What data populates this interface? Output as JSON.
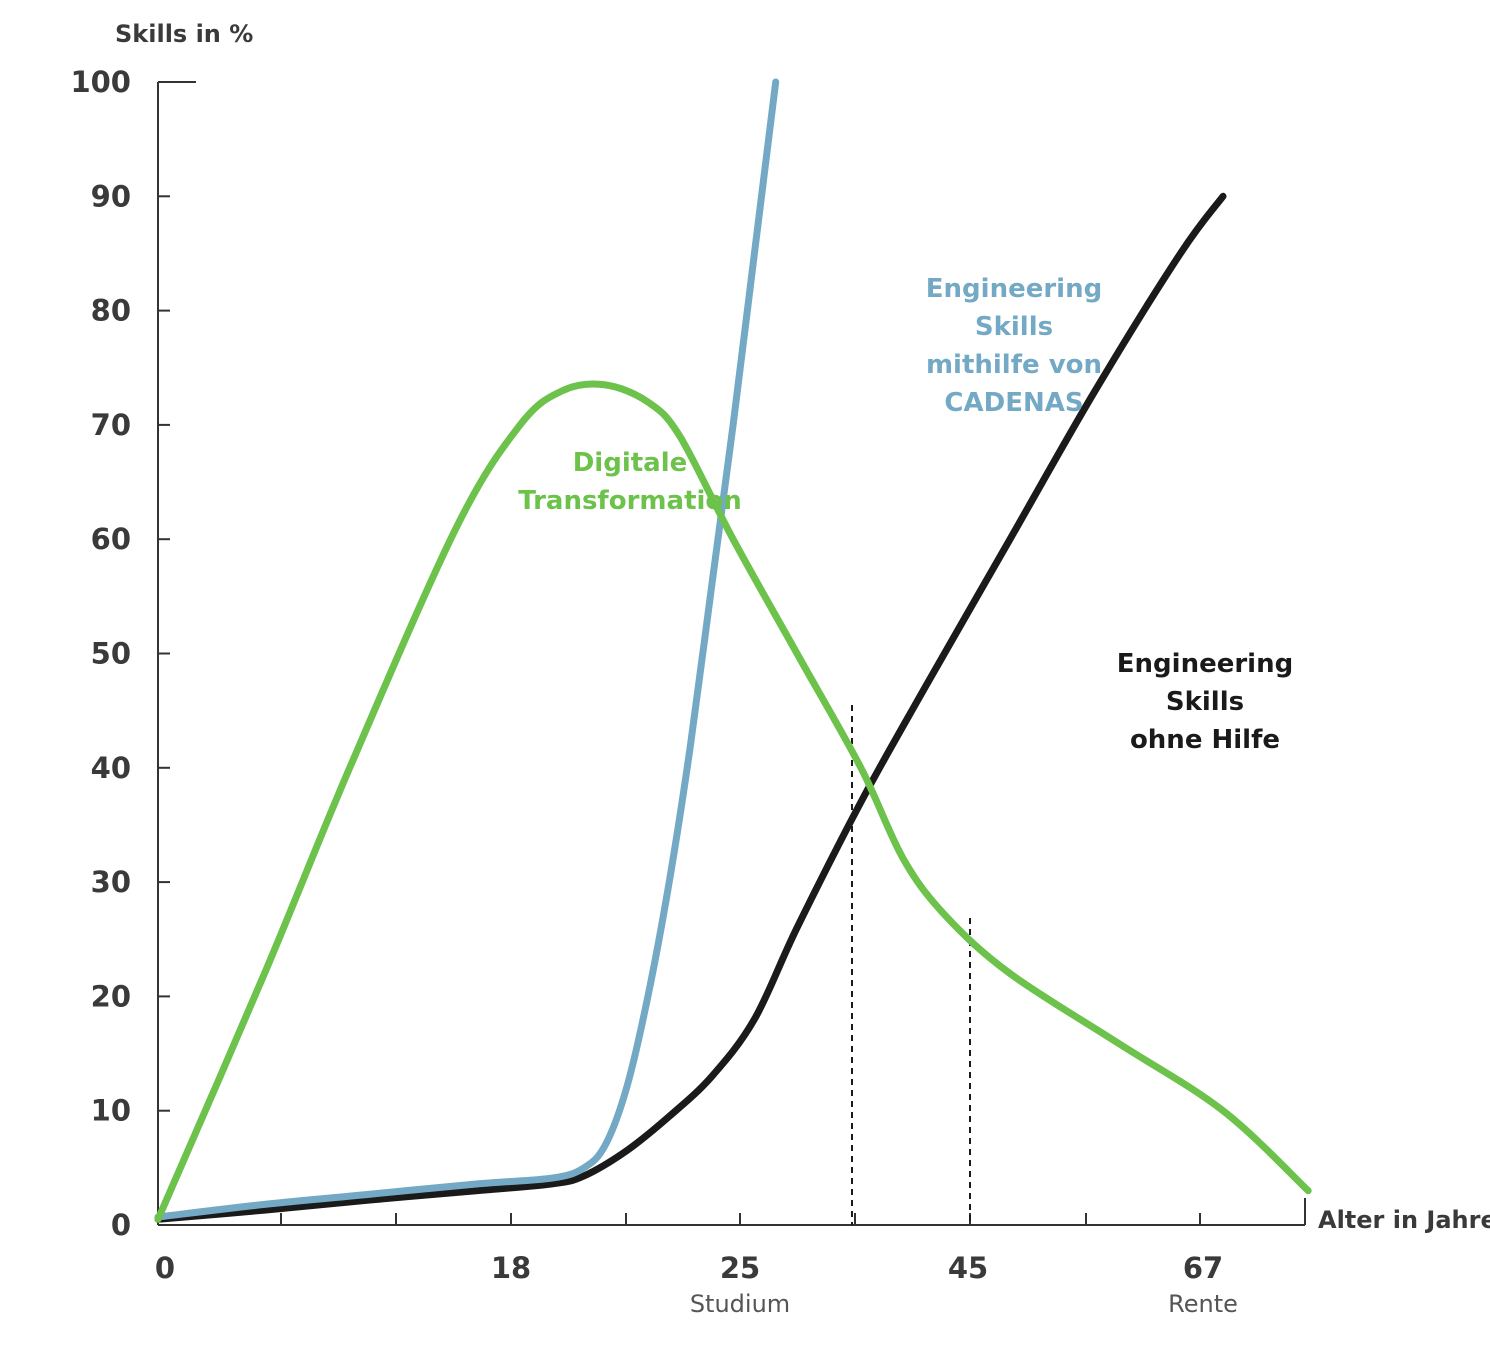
{
  "colors": {
    "green": "#6cc24a",
    "blue": "#74a9c5",
    "black": "#1a1a1a",
    "axis": "#333333"
  },
  "chart_data": {
    "type": "line",
    "ylabel": "Skills in %",
    "xlabel": "Alter in Jahre",
    "ylim": [
      0,
      100
    ],
    "yticks": [
      0,
      10,
      20,
      30,
      40,
      50,
      60,
      70,
      80,
      90,
      100
    ],
    "xticks": [
      {
        "value": "0",
        "sub": ""
      },
      {
        "value": "18",
        "sub": ""
      },
      {
        "value": "25",
        "sub": "Studium"
      },
      {
        "value": "45",
        "sub": ""
      },
      {
        "value": "67",
        "sub": "Rente"
      }
    ],
    "grid": false,
    "legend": "none",
    "series": [
      {
        "key": "green",
        "label_lines": [
          "Digitale",
          "Transformation"
        ],
        "points": [
          [
            0,
            0.5
          ],
          [
            5,
            22
          ],
          [
            9,
            40
          ],
          [
            14,
            61
          ],
          [
            17,
            70
          ],
          [
            19,
            73
          ],
          [
            21,
            73.5
          ],
          [
            23,
            72
          ],
          [
            24.5,
            69
          ],
          [
            27,
            60
          ],
          [
            30,
            50
          ],
          [
            33,
            40
          ],
          [
            35,
            32
          ],
          [
            37,
            27
          ],
          [
            40,
            22
          ],
          [
            45,
            16
          ],
          [
            50,
            10
          ],
          [
            54,
            3
          ]
        ]
      },
      {
        "key": "blue",
        "label_lines": [
          "Engineering",
          "Skills",
          "mithilfe von",
          "CADENAS"
        ],
        "points": [
          [
            0,
            0.7
          ],
          [
            5,
            1.8
          ],
          [
            10,
            2.7
          ],
          [
            15,
            3.6
          ],
          [
            18.5,
            4.1
          ],
          [
            20,
            5
          ],
          [
            21,
            7
          ],
          [
            22,
            12
          ],
          [
            23,
            20
          ],
          [
            24,
            30
          ],
          [
            25,
            42
          ],
          [
            26,
            56
          ],
          [
            27,
            70
          ],
          [
            28,
            85
          ],
          [
            29,
            100
          ]
        ]
      },
      {
        "key": "black",
        "label_lines": [
          "Engineering",
          "Skills",
          "ohne Hilfe"
        ],
        "points": [
          [
            0,
            0.5
          ],
          [
            5,
            1.3
          ],
          [
            10,
            2.2
          ],
          [
            15,
            3
          ],
          [
            18.5,
            3.6
          ],
          [
            20,
            4.3
          ],
          [
            22,
            6.5
          ],
          [
            24,
            9.5
          ],
          [
            26,
            13
          ],
          [
            28,
            18
          ],
          [
            30,
            26
          ],
          [
            33,
            37
          ],
          [
            36,
            47
          ],
          [
            40,
            60
          ],
          [
            44,
            73
          ],
          [
            48,
            85
          ],
          [
            50,
            90
          ]
        ]
      }
    ]
  }
}
